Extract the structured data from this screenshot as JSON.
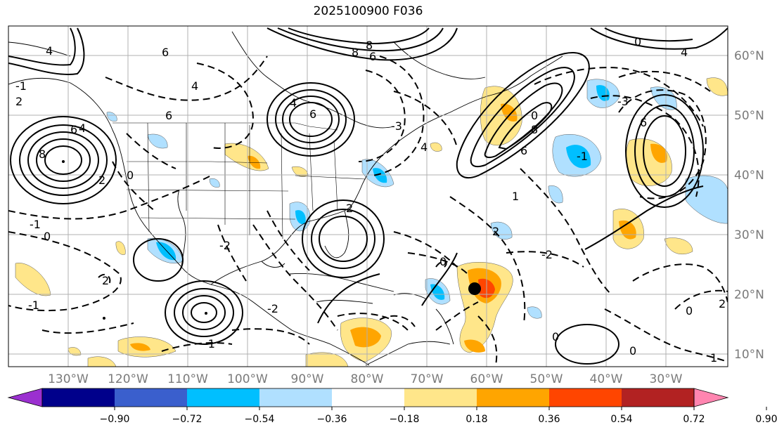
{
  "title": "2025100900 F036",
  "map": {
    "lon_labels": [
      "130°W",
      "120°W",
      "110°W",
      "100°W",
      "90°W",
      "80°W",
      "70°W",
      "60°W",
      "50°W",
      "40°W",
      "30°W"
    ],
    "lat_labels": [
      "60°N",
      "50°N",
      "40°N",
      "30°N",
      "20°N",
      "10°N"
    ],
    "contour_labels": [
      "6",
      "4",
      "2",
      "8",
      "6",
      "4",
      "0",
      "-1",
      "-2",
      "-1",
      "2",
      "6",
      "8",
      "6",
      "4",
      "0",
      "-1",
      "-2",
      "-3",
      "-3",
      "0",
      "6",
      "8",
      "6",
      "1",
      "0",
      "-1",
      "0",
      "4",
      "1",
      "2",
      "0",
      "-2",
      "2",
      "0",
      "-1",
      "2",
      "4",
      "6",
      "8",
      "4",
      "2",
      "0"
    ],
    "marker": "storm-center-marker"
  },
  "colorbar": {
    "ticks": [
      "−0.90",
      "−0.72",
      "−0.54",
      "−0.36",
      "−0.18",
      "0.18",
      "0.36",
      "0.54",
      "0.72",
      "0.90"
    ],
    "colors": [
      "#9b30d0",
      "#00008b",
      "#3a5fcd",
      "#00bfff",
      "#b0e0ff",
      "#ffffff",
      "#ffe68a",
      "#ffa500",
      "#ff4500",
      "#b22222",
      "#ff85b0"
    ]
  }
}
